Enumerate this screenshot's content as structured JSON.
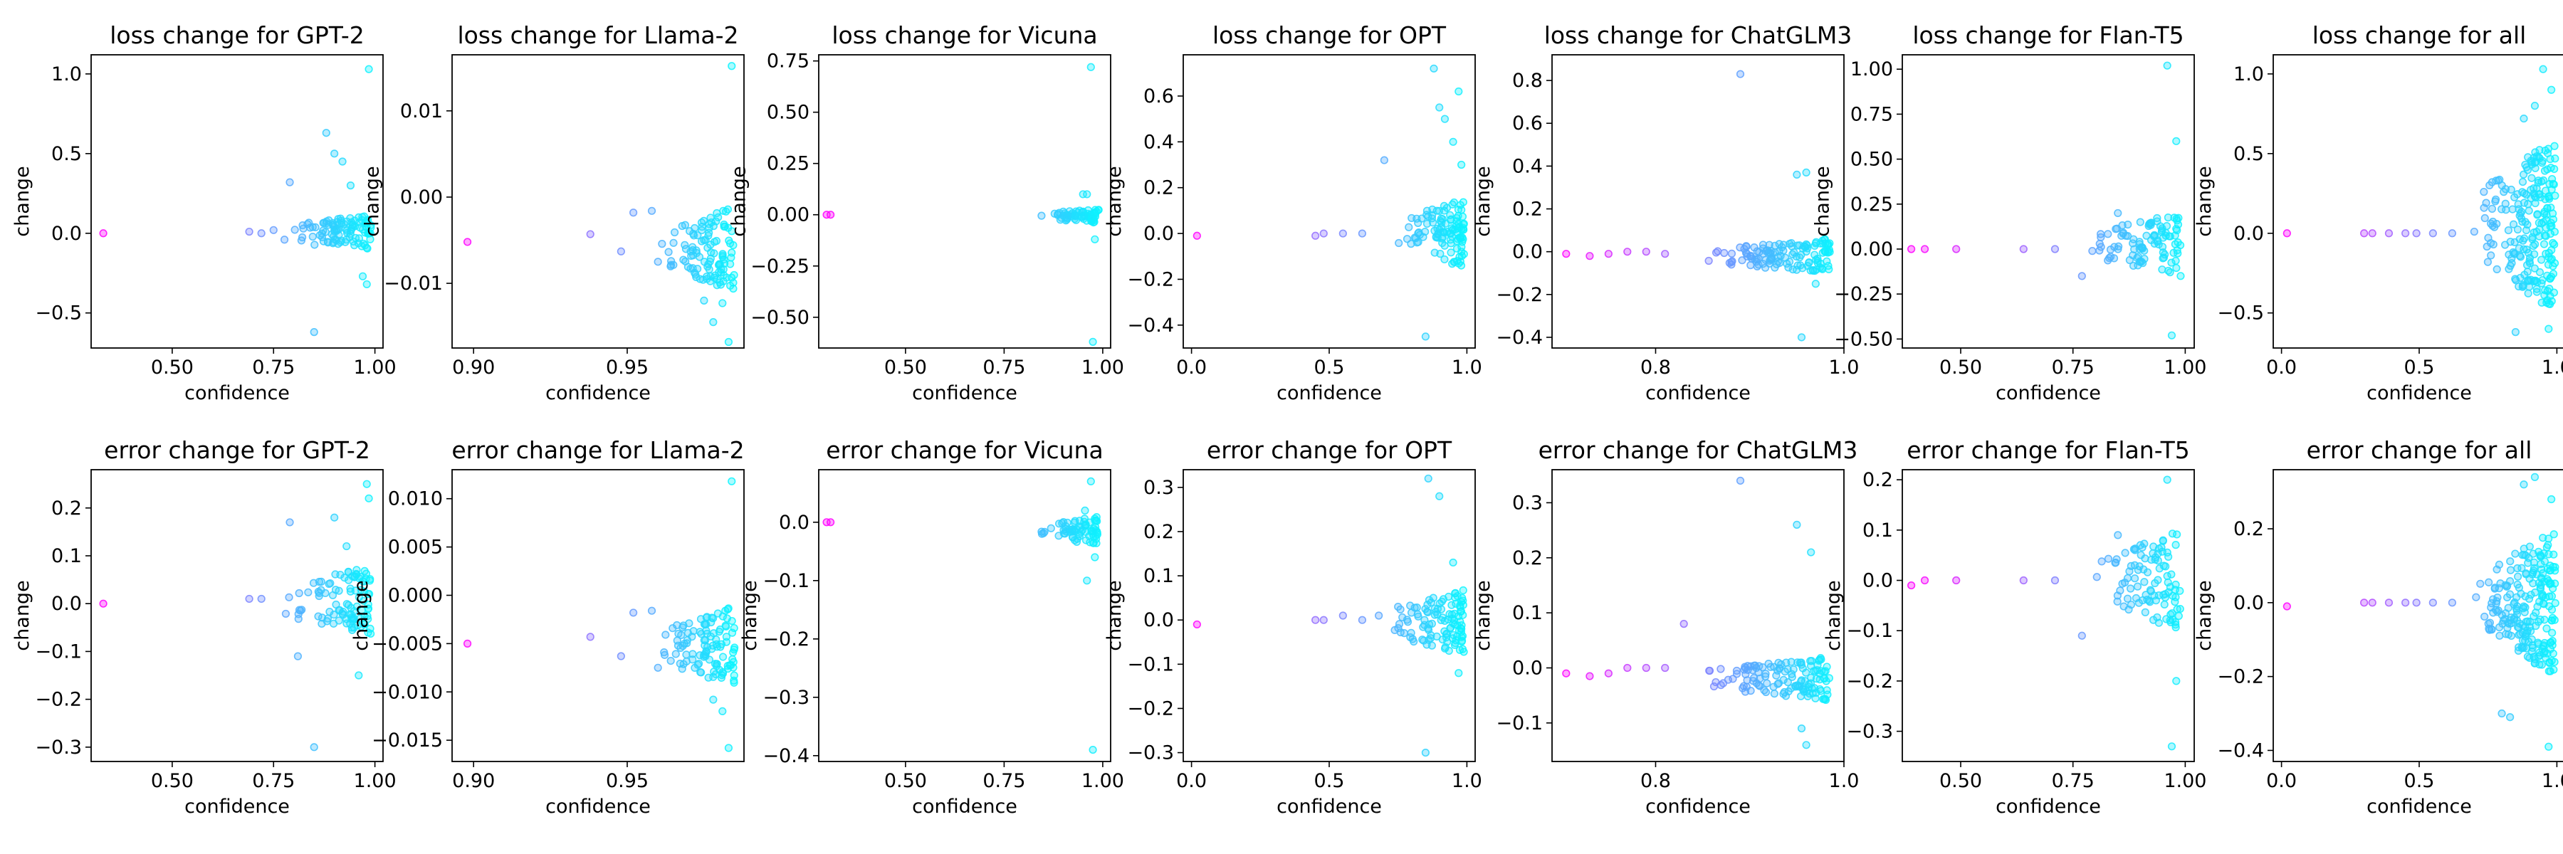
{
  "chart_data": [
    {
      "type": "scatter",
      "title": "loss change for GPT-2",
      "xlabel": "confidence",
      "ylabel": "change",
      "xlim": [
        0.3,
        1.02
      ],
      "ylim": [
        -0.72,
        1.12
      ],
      "xticks": [
        0.5,
        0.75,
        1.0
      ],
      "xtick_labels": [
        "0.50",
        "0.75",
        "1.00"
      ],
      "yticks": [
        -0.5,
        0.0,
        0.5,
        1.0
      ],
      "ytick_labels": [
        "−0.5",
        "0.0",
        "0.5",
        "1.0"
      ],
      "points": [
        [
          0.33,
          0.0
        ],
        [
          0.69,
          0.01
        ],
        [
          0.72,
          0.0
        ],
        [
          0.75,
          0.02
        ],
        [
          0.79,
          0.32
        ],
        [
          0.85,
          -0.62
        ],
        [
          0.88,
          0.63
        ],
        [
          0.9,
          0.5
        ],
        [
          0.92,
          0.45
        ],
        [
          0.94,
          0.3
        ],
        [
          0.96,
          0.1
        ],
        [
          0.97,
          -0.27
        ],
        [
          0.98,
          -0.32
        ],
        [
          0.985,
          1.03
        ],
        [
          0.99,
          0.05
        ]
      ],
      "cluster": {
        "xmin": 0.76,
        "xmax": 0.99,
        "ymin": -0.12,
        "ymax": 0.12,
        "n": 100
      }
    },
    {
      "type": "scatter",
      "title": "loss change for Llama-2",
      "xlabel": "confidence",
      "ylabel": "change",
      "xlim": [
        0.893,
        0.988
      ],
      "ylim": [
        -0.0175,
        0.0165
      ],
      "xticks": [
        0.9,
        0.95
      ],
      "xtick_labels": [
        "0.90",
        "0.95"
      ],
      "yticks": [
        -0.01,
        0.0,
        0.01
      ],
      "ytick_labels": [
        "−0.01",
        "0.00",
        "0.01"
      ],
      "points": [
        [
          0.898,
          -0.0052
        ],
        [
          0.938,
          -0.0043
        ],
        [
          0.948,
          -0.0063
        ],
        [
          0.952,
          -0.0018
        ],
        [
          0.958,
          -0.0016
        ],
        [
          0.96,
          -0.0075
        ],
        [
          0.984,
          0.0152
        ],
        [
          0.983,
          -0.0168
        ],
        [
          0.981,
          -0.0123
        ],
        [
          0.978,
          -0.0145
        ],
        [
          0.975,
          -0.012
        ]
      ],
      "cluster": {
        "xmin": 0.96,
        "xmax": 0.985,
        "ymin": -0.011,
        "ymax": -0.001,
        "n": 110
      }
    },
    {
      "type": "scatter",
      "title": "loss change for Vicuna",
      "xlabel": "confidence",
      "ylabel": "change",
      "xlim": [
        0.28,
        1.02
      ],
      "ylim": [
        -0.65,
        0.78
      ],
      "xticks": [
        0.5,
        0.75,
        1.0
      ],
      "xtick_labels": [
        "0.50",
        "0.75",
        "1.00"
      ],
      "yticks": [
        -0.5,
        -0.25,
        0.0,
        0.25,
        0.5,
        0.75
      ],
      "ytick_labels": [
        "−0.50",
        "−0.25",
        "0.00",
        "0.25",
        "0.50",
        "0.75"
      ],
      "points": [
        [
          0.3,
          0.0
        ],
        [
          0.31,
          0.0
        ],
        [
          0.97,
          0.72
        ],
        [
          0.975,
          -0.62
        ],
        [
          0.95,
          0.1
        ],
        [
          0.96,
          0.1
        ],
        [
          0.98,
          -0.12
        ]
      ],
      "cluster": {
        "xmin": 0.83,
        "xmax": 0.99,
        "ymin": -0.04,
        "ymax": 0.03,
        "n": 70
      }
    },
    {
      "type": "scatter",
      "title": "loss change for OPT",
      "xlabel": "confidence",
      "ylabel": "change",
      "xlim": [
        -0.03,
        1.03
      ],
      "ylim": [
        -0.5,
        0.78
      ],
      "xticks": [
        0.0,
        0.5,
        1.0
      ],
      "xtick_labels": [
        "0.0",
        "0.5",
        "1.0"
      ],
      "yticks": [
        -0.4,
        -0.2,
        0.0,
        0.2,
        0.4,
        0.6
      ],
      "ytick_labels": [
        "−0.4",
        "−0.2",
        "0.0",
        "0.2",
        "0.4",
        "0.6"
      ],
      "points": [
        [
          0.02,
          -0.01
        ],
        [
          0.45,
          -0.01
        ],
        [
          0.48,
          0.0
        ],
        [
          0.55,
          0.0
        ],
        [
          0.62,
          0.0
        ],
        [
          0.7,
          0.32
        ],
        [
          0.85,
          -0.45
        ],
        [
          0.88,
          0.72
        ],
        [
          0.9,
          0.55
        ],
        [
          0.92,
          0.5
        ],
        [
          0.95,
          0.4
        ],
        [
          0.97,
          0.62
        ],
        [
          0.98,
          0.3
        ]
      ],
      "cluster": {
        "xmin": 0.72,
        "xmax": 0.99,
        "ymin": -0.15,
        "ymax": 0.15,
        "n": 110
      }
    },
    {
      "type": "scatter",
      "title": "loss change for ChatGLM3",
      "xlabel": "confidence",
      "ylabel": "change",
      "xlim": [
        0.69,
        1.0
      ],
      "ylim": [
        -0.45,
        0.92
      ],
      "xticks": [
        0.8,
        1.0
      ],
      "xtick_labels": [
        "0.8",
        "1.0"
      ],
      "yticks": [
        -0.4,
        -0.2,
        0.0,
        0.2,
        0.4,
        0.6,
        0.8
      ],
      "ytick_labels": [
        "−0.4",
        "−0.2",
        "0.0",
        "0.2",
        "0.4",
        "0.6",
        "0.8"
      ],
      "points": [
        [
          0.705,
          -0.01
        ],
        [
          0.73,
          -0.02
        ],
        [
          0.75,
          -0.01
        ],
        [
          0.77,
          0.0
        ],
        [
          0.79,
          0.0
        ],
        [
          0.81,
          -0.01
        ],
        [
          0.89,
          0.83
        ],
        [
          0.95,
          0.36
        ],
        [
          0.96,
          0.37
        ],
        [
          0.955,
          -0.4
        ],
        [
          0.97,
          -0.15
        ]
      ],
      "cluster": {
        "xmin": 0.84,
        "xmax": 0.985,
        "ymin": -0.1,
        "ymax": 0.06,
        "n": 130
      }
    },
    {
      "type": "scatter",
      "title": "loss change for Flan-T5",
      "xlabel": "confidence",
      "ylabel": "change",
      "xlim": [
        0.37,
        1.02
      ],
      "ylim": [
        -0.55,
        1.08
      ],
      "xticks": [
        0.5,
        0.75,
        1.0
      ],
      "xtick_labels": [
        "0.50",
        "0.75",
        "1.00"
      ],
      "yticks": [
        -0.5,
        -0.25,
        0.0,
        0.25,
        0.5,
        0.75,
        1.0
      ],
      "ytick_labels": [
        "−0.50",
        "−0.25",
        "0.00",
        "0.25",
        "0.50",
        "0.75",
        "1.00"
      ],
      "points": [
        [
          0.39,
          0.0
        ],
        [
          0.42,
          0.0
        ],
        [
          0.49,
          0.0
        ],
        [
          0.64,
          0.0
        ],
        [
          0.71,
          0.0
        ],
        [
          0.77,
          -0.15
        ],
        [
          0.85,
          0.2
        ],
        [
          0.9,
          0.15
        ],
        [
          0.96,
          1.02
        ],
        [
          0.97,
          -0.48
        ],
        [
          0.98,
          0.6
        ]
      ],
      "cluster": {
        "xmin": 0.77,
        "xmax": 0.99,
        "ymin": -0.15,
        "ymax": 0.2,
        "n": 100
      }
    },
    {
      "type": "scatter",
      "title": "loss change for all",
      "xlabel": "confidence",
      "ylabel": "change",
      "xlim": [
        -0.03,
        1.03
      ],
      "ylim": [
        -0.72,
        1.12
      ],
      "xticks": [
        0.0,
        0.5,
        1.0
      ],
      "xtick_labels": [
        "0.0",
        "0.5",
        "1.0"
      ],
      "yticks": [
        -0.5,
        0.0,
        0.5,
        1.0
      ],
      "ytick_labels": [
        "−0.5",
        "0.0",
        "0.5",
        "1.0"
      ],
      "points": [
        [
          0.02,
          0.0
        ],
        [
          0.3,
          0.0
        ],
        [
          0.33,
          0.0
        ],
        [
          0.39,
          0.0
        ],
        [
          0.45,
          0.0
        ],
        [
          0.49,
          0.0
        ],
        [
          0.55,
          0.0
        ],
        [
          0.62,
          0.0
        ],
        [
          0.7,
          0.01
        ],
        [
          0.85,
          -0.62
        ],
        [
          0.88,
          0.72
        ],
        [
          0.92,
          0.8
        ],
        [
          0.95,
          1.03
        ],
        [
          0.97,
          -0.6
        ],
        [
          0.98,
          0.9
        ]
      ],
      "cluster": {
        "xmin": 0.7,
        "xmax": 0.995,
        "ymin": -0.5,
        "ymax": 0.6,
        "n": 220
      }
    },
    {
      "type": "scatter",
      "title": "error change for GPT-2",
      "xlabel": "confidence",
      "ylabel": "change",
      "xlim": [
        0.3,
        1.02
      ],
      "ylim": [
        -0.33,
        0.28
      ],
      "xticks": [
        0.5,
        0.75,
        1.0
      ],
      "xtick_labels": [
        "0.50",
        "0.75",
        "1.00"
      ],
      "yticks": [
        -0.3,
        -0.2,
        -0.1,
        0.0,
        0.1,
        0.2
      ],
      "ytick_labels": [
        "−0.3",
        "−0.2",
        "−0.1",
        "0.0",
        "0.1",
        "0.2"
      ],
      "points": [
        [
          0.33,
          0.0
        ],
        [
          0.69,
          0.01
        ],
        [
          0.72,
          0.01
        ],
        [
          0.79,
          0.17
        ],
        [
          0.81,
          -0.11
        ],
        [
          0.85,
          -0.3
        ],
        [
          0.9,
          0.18
        ],
        [
          0.93,
          0.12
        ],
        [
          0.96,
          -0.15
        ],
        [
          0.98,
          0.25
        ],
        [
          0.985,
          0.22
        ]
      ],
      "cluster": {
        "xmin": 0.76,
        "xmax": 0.99,
        "ymin": -0.07,
        "ymax": 0.08,
        "n": 100
      }
    },
    {
      "type": "scatter",
      "title": "error change for Llama-2",
      "xlabel": "confidence",
      "ylabel": "change",
      "xlim": [
        0.893,
        0.988
      ],
      "ylim": [
        -0.0172,
        0.013
      ],
      "xticks": [
        0.9,
        0.95
      ],
      "xtick_labels": [
        "0.90",
        "0.95"
      ],
      "yticks": [
        -0.015,
        -0.01,
        -0.005,
        0.0,
        0.005,
        0.01
      ],
      "ytick_labels": [
        "−0.015",
        "−0.010",
        "−0.005",
        "0.000",
        "0.005",
        "0.010"
      ],
      "points": [
        [
          0.898,
          -0.005
        ],
        [
          0.938,
          -0.0043
        ],
        [
          0.948,
          -0.0063
        ],
        [
          0.952,
          -0.0018
        ],
        [
          0.958,
          -0.0016
        ],
        [
          0.96,
          -0.0075
        ],
        [
          0.984,
          0.0118
        ],
        [
          0.983,
          -0.0158
        ],
        [
          0.981,
          -0.012
        ],
        [
          0.978,
          -0.0108
        ]
      ],
      "cluster": {
        "xmin": 0.96,
        "xmax": 0.985,
        "ymin": -0.0095,
        "ymax": -0.001,
        "n": 110
      }
    },
    {
      "type": "scatter",
      "title": "error change for Vicuna",
      "xlabel": "confidence",
      "ylabel": "change",
      "xlim": [
        0.28,
        1.02
      ],
      "ylim": [
        -0.41,
        0.09
      ],
      "xticks": [
        0.5,
        0.75,
        1.0
      ],
      "xtick_labels": [
        "0.50",
        "0.75",
        "1.00"
      ],
      "yticks": [
        -0.4,
        -0.3,
        -0.2,
        -0.1,
        0.0
      ],
      "ytick_labels": [
        "−0.4",
        "−0.3",
        "−0.2",
        "−0.1",
        "0.0"
      ],
      "points": [
        [
          0.3,
          0.0
        ],
        [
          0.31,
          0.0
        ],
        [
          0.97,
          0.07
        ],
        [
          0.975,
          -0.39
        ],
        [
          0.96,
          -0.1
        ],
        [
          0.98,
          -0.06
        ],
        [
          0.955,
          0.02
        ]
      ],
      "cluster": {
        "xmin": 0.83,
        "xmax": 0.99,
        "ymin": -0.04,
        "ymax": 0.01,
        "n": 70
      }
    },
    {
      "type": "scatter",
      "title": "error change for OPT",
      "xlabel": "confidence",
      "ylabel": "change",
      "xlim": [
        -0.03,
        1.03
      ],
      "ylim": [
        -0.32,
        0.34
      ],
      "xticks": [
        0.0,
        0.5,
        1.0
      ],
      "xtick_labels": [
        "0.0",
        "0.5",
        "1.0"
      ],
      "yticks": [
        -0.3,
        -0.2,
        -0.1,
        0.0,
        0.1,
        0.2,
        0.3
      ],
      "ytick_labels": [
        "−0.3",
        "−0.2",
        "−0.1",
        "0.0",
        "0.1",
        "0.2",
        "0.3"
      ],
      "points": [
        [
          0.02,
          -0.01
        ],
        [
          0.45,
          0.0
        ],
        [
          0.48,
          0.0
        ],
        [
          0.55,
          0.01
        ],
        [
          0.62,
          0.0
        ],
        [
          0.68,
          0.01
        ],
        [
          0.75,
          0.03
        ],
        [
          0.85,
          -0.3
        ],
        [
          0.86,
          0.32
        ],
        [
          0.9,
          0.28
        ],
        [
          0.95,
          0.13
        ],
        [
          0.97,
          -0.12
        ]
      ],
      "cluster": {
        "xmin": 0.7,
        "xmax": 0.99,
        "ymin": -0.08,
        "ymax": 0.07,
        "n": 110
      }
    },
    {
      "type": "scatter",
      "title": "error change for ChatGLM3",
      "xlabel": "confidence",
      "ylabel": "change",
      "xlim": [
        0.69,
        1.0
      ],
      "ylim": [
        -0.17,
        0.36
      ],
      "xticks": [
        0.8,
        1.0
      ],
      "xtick_labels": [
        "0.8",
        "1.0"
      ],
      "yticks": [
        -0.1,
        0.0,
        0.1,
        0.2,
        0.3
      ],
      "ytick_labels": [
        "−0.1",
        "0.0",
        "0.1",
        "0.2",
        "0.3"
      ],
      "points": [
        [
          0.705,
          -0.01
        ],
        [
          0.73,
          -0.015
        ],
        [
          0.75,
          -0.01
        ],
        [
          0.77,
          0.0
        ],
        [
          0.79,
          0.0
        ],
        [
          0.81,
          0.0
        ],
        [
          0.83,
          0.08
        ],
        [
          0.89,
          0.34
        ],
        [
          0.95,
          0.26
        ],
        [
          0.965,
          0.21
        ],
        [
          0.96,
          -0.14
        ],
        [
          0.955,
          -0.11
        ]
      ],
      "cluster": {
        "xmin": 0.84,
        "xmax": 0.985,
        "ymin": -0.06,
        "ymax": 0.02,
        "n": 130
      }
    },
    {
      "type": "scatter",
      "title": "error change for Flan-T5",
      "xlabel": "confidence",
      "ylabel": "change",
      "xlim": [
        0.37,
        1.02
      ],
      "ylim": [
        -0.36,
        0.22
      ],
      "xticks": [
        0.5,
        0.75,
        1.0
      ],
      "xtick_labels": [
        "0.50",
        "0.75",
        "1.00"
      ],
      "yticks": [
        -0.3,
        -0.2,
        -0.1,
        0.0,
        0.1,
        0.2
      ],
      "ytick_labels": [
        "−0.3",
        "−0.2",
        "−0.1",
        "0.0",
        "0.1",
        "0.2"
      ],
      "points": [
        [
          0.39,
          -0.01
        ],
        [
          0.42,
          0.0
        ],
        [
          0.49,
          0.0
        ],
        [
          0.64,
          0.0
        ],
        [
          0.71,
          0.0
        ],
        [
          0.77,
          -0.11
        ],
        [
          0.85,
          0.09
        ],
        [
          0.9,
          0.07
        ],
        [
          0.96,
          0.2
        ],
        [
          0.97,
          -0.33
        ],
        [
          0.98,
          -0.2
        ]
      ],
      "cluster": {
        "xmin": 0.77,
        "xmax": 0.99,
        "ymin": -0.1,
        "ymax": 0.1,
        "n": 100
      }
    },
    {
      "type": "scatter",
      "title": "error change for all",
      "xlabel": "confidence",
      "ylabel": "change",
      "xlim": [
        -0.03,
        1.03
      ],
      "ylim": [
        -0.43,
        0.36
      ],
      "xticks": [
        0.0,
        0.5,
        1.0
      ],
      "xtick_labels": [
        "0.0",
        "0.5",
        "1.0"
      ],
      "yticks": [
        -0.4,
        -0.2,
        0.0,
        0.2
      ],
      "ytick_labels": [
        "−0.4",
        "−0.2",
        "0.0",
        "0.2"
      ],
      "points": [
        [
          0.02,
          -0.01
        ],
        [
          0.3,
          0.0
        ],
        [
          0.33,
          0.0
        ],
        [
          0.39,
          0.0
        ],
        [
          0.45,
          0.0
        ],
        [
          0.49,
          0.0
        ],
        [
          0.55,
          0.0
        ],
        [
          0.62,
          0.0
        ],
        [
          0.8,
          -0.3
        ],
        [
          0.83,
          -0.31
        ],
        [
          0.88,
          0.32
        ],
        [
          0.92,
          0.34
        ],
        [
          0.97,
          -0.39
        ],
        [
          0.98,
          0.28
        ]
      ],
      "cluster": {
        "xmin": 0.7,
        "xmax": 0.995,
        "ymin": -0.2,
        "ymax": 0.2,
        "n": 220
      }
    }
  ]
}
